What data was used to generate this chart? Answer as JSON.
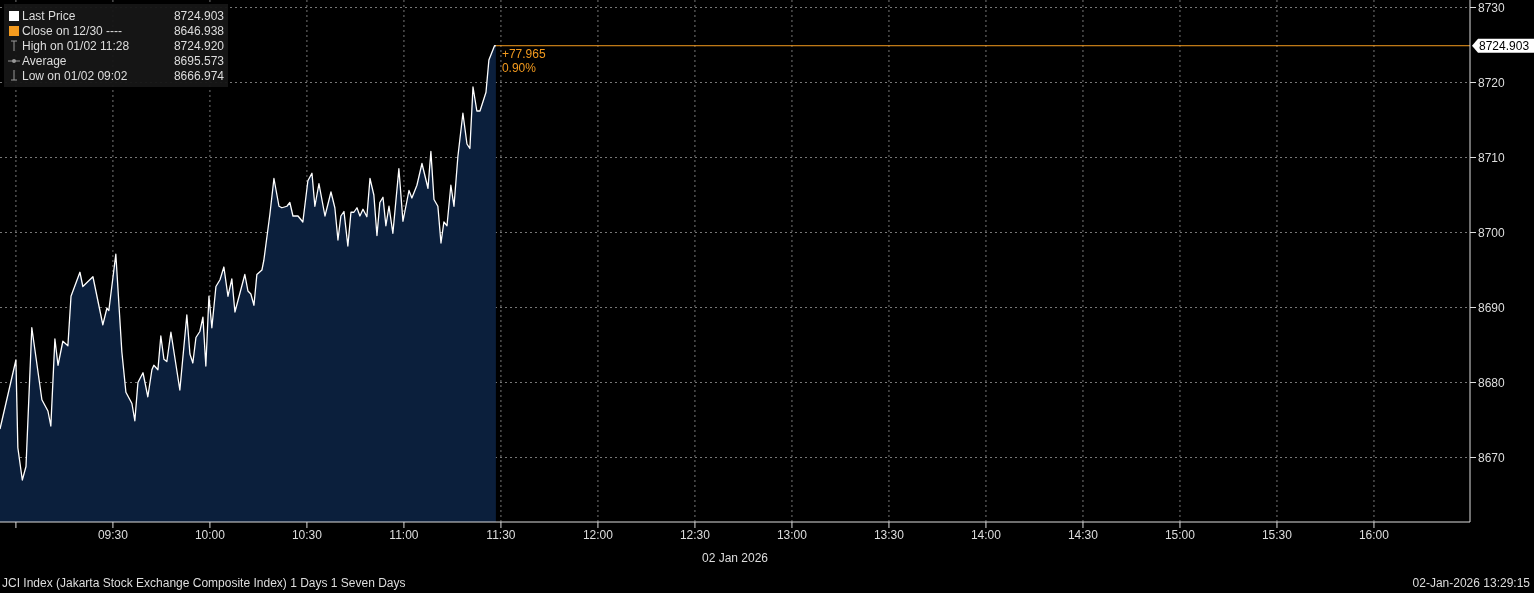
{
  "chart_data": {
    "type": "area",
    "xlabel": "02 Jan 2026",
    "x": [
      8.918,
      9.0,
      9.01,
      9.033,
      9.052,
      9.082,
      9.134,
      9.165,
      9.18,
      9.201,
      9.217,
      9.242,
      9.268,
      9.284,
      9.33,
      9.345,
      9.397,
      9.448,
      9.469,
      9.479,
      9.515,
      9.546,
      9.567,
      9.598,
      9.613,
      9.629,
      9.655,
      9.68,
      9.701,
      9.711,
      9.732,
      9.747,
      9.763,
      9.778,
      9.799,
      9.845,
      9.881,
      9.897,
      9.912,
      9.928,
      9.948,
      9.964,
      9.979,
      9.995,
      10.01,
      10.031,
      10.052,
      10.072,
      10.093,
      10.113,
      10.129,
      10.18,
      10.196,
      10.211,
      10.227,
      10.242,
      10.268,
      10.278,
      10.309,
      10.33,
      10.356,
      10.371,
      10.397,
      10.412,
      10.428,
      10.454,
      10.479,
      10.505,
      10.526,
      10.541,
      10.562,
      10.593,
      10.624,
      10.644,
      10.66,
      10.675,
      10.691,
      10.711,
      10.727,
      10.742,
      10.758,
      10.773,
      10.789,
      10.809,
      10.825,
      10.845,
      10.861,
      10.876,
      10.892,
      10.907,
      10.923,
      10.943,
      10.974,
      10.995,
      11.026,
      11.041,
      11.067,
      11.093,
      11.124,
      11.139,
      11.155,
      11.175,
      11.191,
      11.206,
      11.222,
      11.242,
      11.258,
      11.278,
      11.304,
      11.325,
      11.34,
      11.356,
      11.376,
      11.392,
      11.423,
      11.438,
      11.467,
      11.474
    ],
    "series": [
      {
        "name": "Last Price",
        "color": "#ffffff",
        "values": [
          8673.8,
          8683.0,
          8671.3,
          8667.0,
          8668.8,
          8687.3,
          8677.7,
          8676.2,
          8674.2,
          8685.8,
          8682.3,
          8685.5,
          8684.9,
          8691.5,
          8694.7,
          8692.8,
          8694.1,
          8687.7,
          8689.9,
          8689.6,
          8697.1,
          8684.1,
          8678.7,
          8677.2,
          8674.9,
          8680.0,
          8681.3,
          8678.1,
          8681.7,
          8682.3,
          8681.7,
          8686.2,
          8683.1,
          8682.8,
          8686.7,
          8679.0,
          8689.0,
          8683.8,
          8682.6,
          8686.0,
          8686.8,
          8688.7,
          8682.2,
          8691.5,
          8687.3,
          8692.8,
          8693.7,
          8695.4,
          8691.5,
          8693.8,
          8689.4,
          8694.4,
          8692.2,
          8691.8,
          8690.3,
          8694.4,
          8695.0,
          8696.3,
          8702.4,
          8707.2,
          8703.5,
          8703.3,
          8703.5,
          8704.0,
          8702.2,
          8702.2,
          8701.4,
          8706.9,
          8707.9,
          8703.5,
          8706.5,
          8702.2,
          8705.4,
          8703.3,
          8699.0,
          8702.2,
          8702.8,
          8698.2,
          8702.7,
          8702.7,
          8703.3,
          8702.2,
          8703.1,
          8702.1,
          8707.2,
          8705.0,
          8699.6,
          8704.0,
          8704.7,
          8700.9,
          8703.5,
          8699.9,
          8708.5,
          8701.5,
          8705.6,
          8704.6,
          8706.3,
          8709.2,
          8705.9,
          8710.8,
          8704.4,
          8703.5,
          8698.6,
          8701.4,
          8700.9,
          8706.3,
          8703.5,
          8710.1,
          8715.9,
          8711.8,
          8711.2,
          8719.4,
          8716.2,
          8716.2,
          8718.7,
          8723.0,
          8724.9,
          8724.9
        ]
      }
    ],
    "xlim": [
      8.918,
      16.495
    ],
    "xticks": [
      {
        "value": 9,
        "label": null
      },
      {
        "value": 9.5,
        "label": "09:30"
      },
      {
        "value": 10,
        "label": "10:00"
      },
      {
        "value": 10.5,
        "label": "10:30"
      },
      {
        "value": 11,
        "label": "11:00"
      },
      {
        "value": 11.5,
        "label": "11:30"
      },
      {
        "value": 12,
        "label": "12:00"
      },
      {
        "value": 12.5,
        "label": "12:30"
      },
      {
        "value": 13,
        "label": "13:00"
      },
      {
        "value": 13.5,
        "label": "13:30"
      },
      {
        "value": 14,
        "label": "14:00"
      },
      {
        "value": 14.5,
        "label": "14:30"
      },
      {
        "value": 15,
        "label": "15:00"
      },
      {
        "value": 15.5,
        "label": "15:30"
      },
      {
        "value": 16,
        "label": "16:00"
      }
    ],
    "ylim": [
      8661.4,
      8731
    ],
    "yticks": [
      8670,
      8680,
      8690,
      8700,
      8710,
      8720,
      8730
    ],
    "grid": true,
    "legend": "top left",
    "ref_lines": [
      {
        "axis": "y",
        "value": 8724.903,
        "color": "#f39a1e"
      }
    ],
    "annotations": [
      "8724.903",
      "Close on 12/30 ---- 8646.938",
      "High on 01/02 11:28 8724.920",
      "Average 8695.573",
      "Low on 01/02 09:02 8666.974",
      "JCI Index (Jakarta Stock Exchange Composite Index) 1 Days 1 Seven Days",
      "02-Jan-2026 13:29:15",
      "+77.965",
      "0.90%"
    ]
  }
}
